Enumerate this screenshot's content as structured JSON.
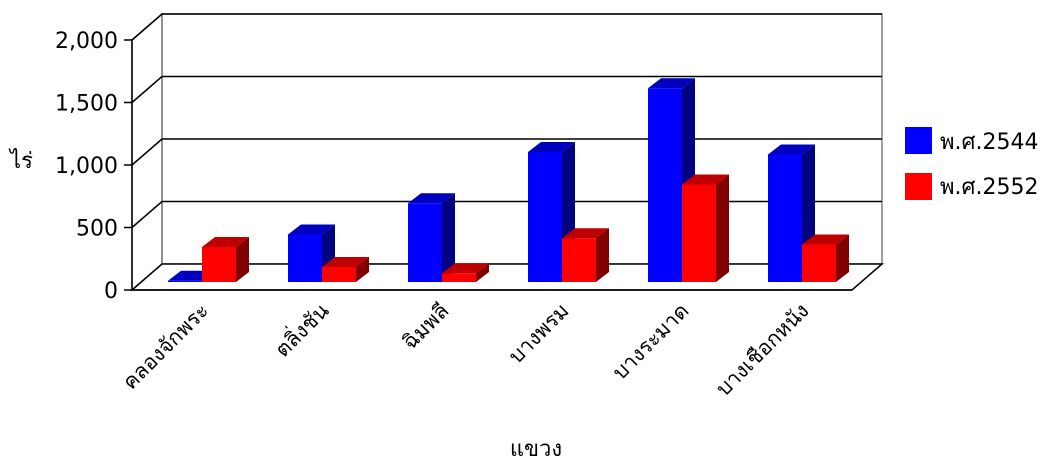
{
  "chart_data": {
    "type": "bar",
    "categories": [
      "คลองจักพระ",
      "ตลิ่งชัน",
      "ฉิมพลี",
      "บางพรม",
      "บางระมาด",
      "บางเชือกหนัง"
    ],
    "series": [
      {
        "name": "พ.ศ.2544",
        "color": "#0000ff",
        "values": [
          10,
          380,
          630,
          1040,
          1550,
          1020
        ]
      },
      {
        "name": "พ.ศ.2552",
        "color": "#ff0000",
        "values": [
          280,
          120,
          70,
          350,
          780,
          300
        ]
      }
    ],
    "yticks": [
      "2,000",
      "1,500",
      "1,000",
      "500",
      "0"
    ],
    "ylim": [
      0,
      2000
    ],
    "ylabel": "ไร่",
    "xlabel": "แขวง",
    "legend_position": "right",
    "grid": true,
    "chart_style": "3d-column"
  }
}
